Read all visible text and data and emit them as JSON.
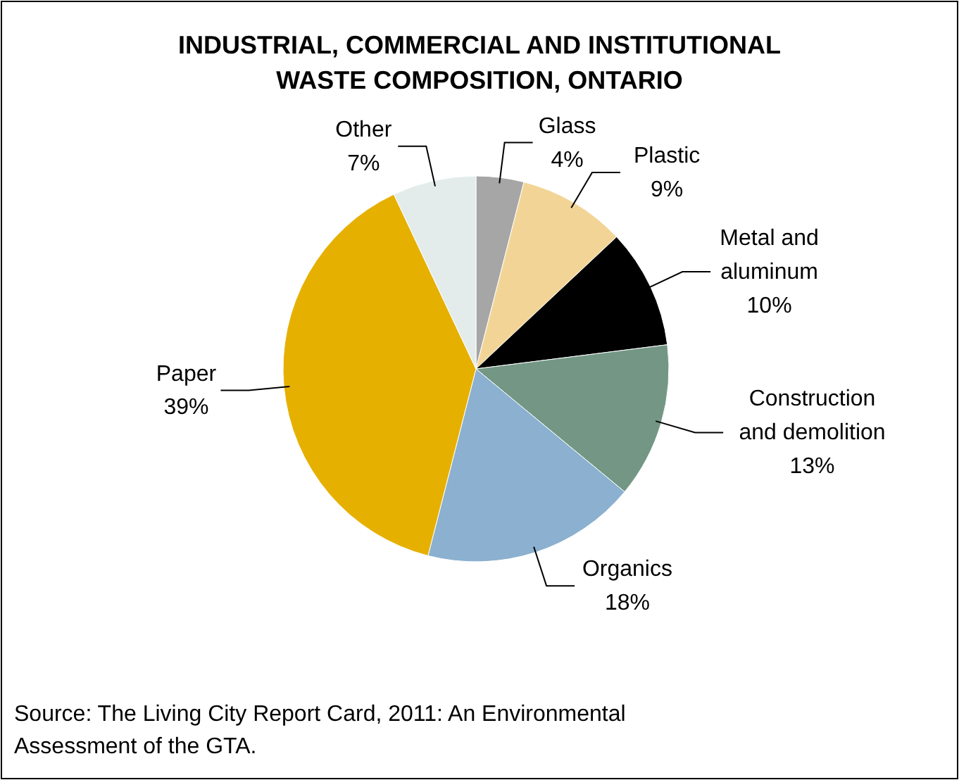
{
  "chart_data": {
    "type": "pie",
    "title": "INDUSTRIAL, COMMERCIAL AND INSTITUTIONAL WASTE COMPOSITION, ONTARIO",
    "categories": [
      "Glass",
      "Plastic",
      "Metal and aluminum",
      "Construction and demolition",
      "Organics",
      "Paper",
      "Other"
    ],
    "values": [
      4,
      9,
      10,
      13,
      18,
      39,
      7
    ],
    "value_labels": [
      "4%",
      "9%",
      "10%",
      "13%",
      "18%",
      "39%",
      "7%"
    ],
    "colors": [
      "#a6a6a6",
      "#f2d596",
      "#000000",
      "#739784",
      "#8bb0d0",
      "#e6b000",
      "#e3ecea"
    ],
    "annotations": [
      "Source: The Living City Report Card, 2011: An Environmental Assessment of the GTA."
    ]
  }
}
